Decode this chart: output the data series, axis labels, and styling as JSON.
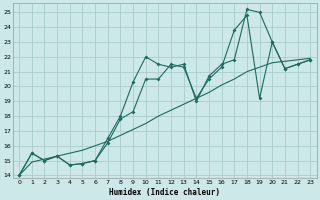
{
  "xlabel": "Humidex (Indice chaleur)",
  "bg_color": "#cce8e8",
  "grid_color": "#aacccc",
  "line_color": "#1a6b60",
  "xlim": [
    -0.5,
    23.5
  ],
  "ylim": [
    13.8,
    25.6
  ],
  "xticks": [
    0,
    1,
    2,
    3,
    4,
    5,
    6,
    7,
    8,
    9,
    10,
    11,
    12,
    13,
    14,
    15,
    16,
    17,
    18,
    19,
    20,
    21,
    22,
    23
  ],
  "yticks": [
    14,
    15,
    16,
    17,
    18,
    19,
    20,
    21,
    22,
    23,
    24,
    25
  ],
  "line1_x": [
    0,
    1,
    2,
    3,
    4,
    5,
    6,
    7,
    8,
    9,
    10,
    11,
    12,
    13,
    14,
    15,
    16,
    17,
    18,
    19,
    20,
    21,
    22,
    23
  ],
  "line1_y": [
    14,
    15.5,
    15.0,
    15.3,
    14.7,
    14.8,
    15.0,
    16.5,
    18.0,
    20.3,
    22.0,
    21.5,
    21.3,
    21.5,
    19.0,
    20.7,
    21.5,
    21.8,
    25.2,
    25.0,
    23.0,
    21.2,
    21.5,
    21.8
  ],
  "line2_x": [
    0,
    1,
    2,
    3,
    4,
    5,
    6,
    7,
    8,
    9,
    10,
    11,
    12,
    13,
    14,
    15,
    16,
    17,
    18,
    19,
    20,
    21,
    22,
    23
  ],
  "line2_y": [
    14,
    15.5,
    15.0,
    15.3,
    14.7,
    14.8,
    15.0,
    16.2,
    17.8,
    18.3,
    20.5,
    20.5,
    21.5,
    21.3,
    19.2,
    20.5,
    21.3,
    23.8,
    24.8,
    19.2,
    23.0,
    21.2,
    21.5,
    21.8
  ],
  "line3_x": [
    0,
    1,
    2,
    3,
    4,
    5,
    6,
    7,
    8,
    9,
    10,
    11,
    12,
    13,
    14,
    15,
    16,
    17,
    18,
    19,
    20,
    21,
    22,
    23
  ],
  "line3_y": [
    14,
    14.9,
    15.1,
    15.3,
    15.5,
    15.7,
    16.0,
    16.3,
    16.7,
    17.1,
    17.5,
    18.0,
    18.4,
    18.8,
    19.2,
    19.6,
    20.1,
    20.5,
    21.0,
    21.3,
    21.6,
    21.7,
    21.8,
    21.9
  ]
}
